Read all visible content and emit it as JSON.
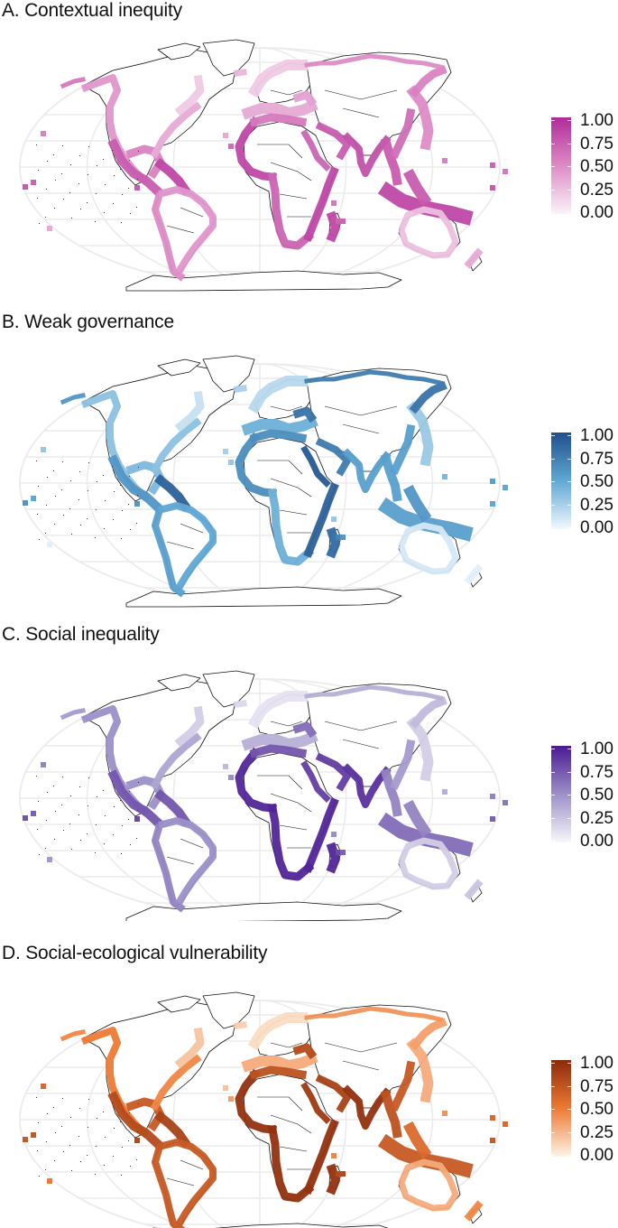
{
  "figure": {
    "panels": [
      {
        "id": "A",
        "title": "A. Contextual inequity",
        "legend": {
          "labels": [
            "1.00",
            "0.75",
            "0.50",
            "0.25",
            "0.00"
          ],
          "color_low": "#fbf3f8",
          "color_mid": "#dd8cc6",
          "color_high": "#b02b97"
        }
      },
      {
        "id": "B",
        "title": "B. Weak governance",
        "legend": {
          "labels": [
            "1.00",
            "0.75",
            "0.50",
            "0.25",
            "0.00"
          ],
          "color_low": "#f2f8fd",
          "color_mid": "#5fa8d4",
          "color_high": "#1f4f8c"
        }
      },
      {
        "id": "C",
        "title": "C. Social inequality",
        "legend": {
          "labels": [
            "1.00",
            "0.75",
            "0.50",
            "0.25",
            "0.00"
          ],
          "color_low": "#f8f7fb",
          "color_mid": "#9c90c8",
          "color_high": "#4a1a93"
        }
      },
      {
        "id": "D",
        "title": "D. Social-ecological vulnerability",
        "legend": {
          "labels": [
            "1.00",
            "0.75",
            "0.50",
            "0.25",
            "0.00"
          ],
          "color_low": "#fdf4e6",
          "color_mid": "#ee7a34",
          "color_high": "#8a2a0b"
        }
      }
    ]
  },
  "chart_data": [
    {
      "type": "heatmap",
      "title": "A. Contextual inequity",
      "legend": {
        "title": "",
        "ticks": [
          0.0,
          0.25,
          0.5,
          0.75,
          1.0
        ],
        "range": [
          0,
          1
        ],
        "palette": "white-to-magenta"
      },
      "regions_high": [
        "West Africa coast",
        "East Africa coast",
        "Madagascar",
        "South Asia",
        "Indonesia / Maritime SE Asia",
        "Caribbean"
      ],
      "regions_low": [
        "Northern Europe",
        "Canada",
        "Australia",
        "New Zealand"
      ]
    },
    {
      "type": "heatmap",
      "title": "B. Weak governance",
      "legend": {
        "title": "",
        "ticks": [
          0.0,
          0.25,
          0.5,
          0.75,
          1.0
        ],
        "range": [
          0,
          1
        ],
        "palette": "white-to-blue"
      },
      "regions_high": [
        "Venezuela / northern South America",
        "Horn of Africa / East Africa",
        "Russia",
        "Red Sea",
        "Papua New Guinea",
        "Madagascar"
      ],
      "regions_low": [
        "Australia",
        "New Zealand",
        "Canada",
        "Northern Europe",
        "United States"
      ]
    },
    {
      "type": "heatmap",
      "title": "C. Social inequality",
      "legend": {
        "title": "",
        "ticks": [
          0.0,
          0.25,
          0.5,
          0.75,
          1.0
        ],
        "range": [
          0,
          1
        ],
        "palette": "white-to-purple"
      },
      "regions_high": [
        "West Africa coast",
        "Southern & East Africa coast",
        "India",
        "Madagascar"
      ],
      "regions_low": [
        "Northern Europe",
        "Japan",
        "Australia",
        "Canada"
      ]
    },
    {
      "type": "heatmap",
      "title": "D. Social-ecological vulnerability",
      "legend": {
        "title": "",
        "ticks": [
          0.0,
          0.25,
          0.5,
          0.75,
          1.0
        ],
        "range": [
          0,
          1
        ],
        "palette": "white-to-orange"
      },
      "regions_high": [
        "West Africa coast",
        "East Africa coast",
        "Madagascar",
        "India / Bay of Bengal",
        "Red Sea"
      ],
      "regions_low": [
        "Northern Europe",
        "Australia",
        "Canada",
        "Japan"
      ]
    }
  ]
}
